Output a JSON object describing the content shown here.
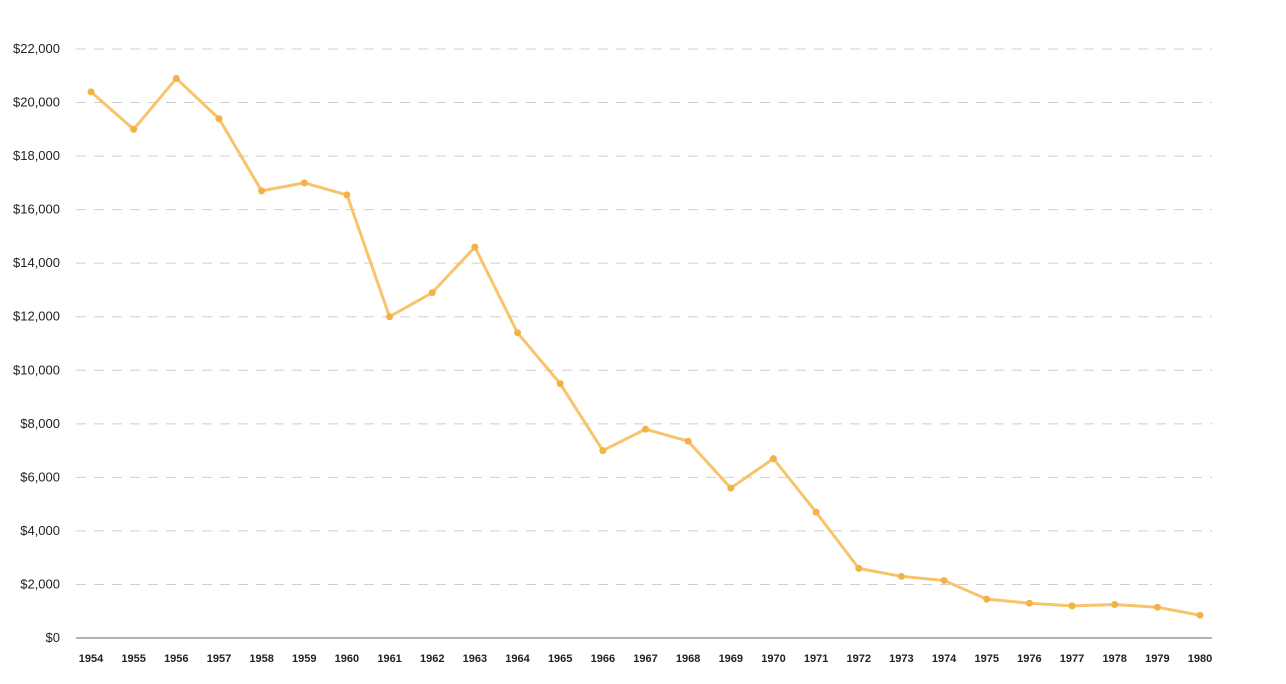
{
  "chart_data": {
    "type": "line",
    "title": "",
    "xlabel": "",
    "ylabel": "",
    "x": [
      "1954",
      "1955",
      "1956",
      "1957",
      "1958",
      "1959",
      "1960",
      "1961",
      "1962",
      "1963",
      "1964",
      "1965",
      "1966",
      "1967",
      "1968",
      "1969",
      "1970",
      "1971",
      "1972",
      "1973",
      "1974",
      "1975",
      "1976",
      "1977",
      "1978",
      "1979",
      "1980"
    ],
    "series": [
      {
        "values": [
          20400,
          19000,
          20900,
          19400,
          16700,
          17000,
          16550,
          12000,
          12900,
          14600,
          11400,
          9500,
          7000,
          7800,
          7350,
          5600,
          6700,
          4700,
          2600,
          2300,
          2150,
          1450,
          1300,
          1200,
          1250,
          1150,
          850
        ],
        "color": "#f8c46b",
        "marker_color": "#f3b246"
      }
    ],
    "ylim": [
      0,
      22000
    ],
    "yticks": [
      0,
      2000,
      4000,
      6000,
      8000,
      10000,
      12000,
      14000,
      16000,
      18000,
      20000,
      22000
    ],
    "ytick_labels": [
      "$0",
      "$2,000",
      "$4,000",
      "$6,000",
      "$8,000",
      "$10,000",
      "$12,000",
      "$14,000",
      "$16,000",
      "$18,000",
      "$20,000",
      "$22,000"
    ],
    "grid": true,
    "legend": "none"
  }
}
